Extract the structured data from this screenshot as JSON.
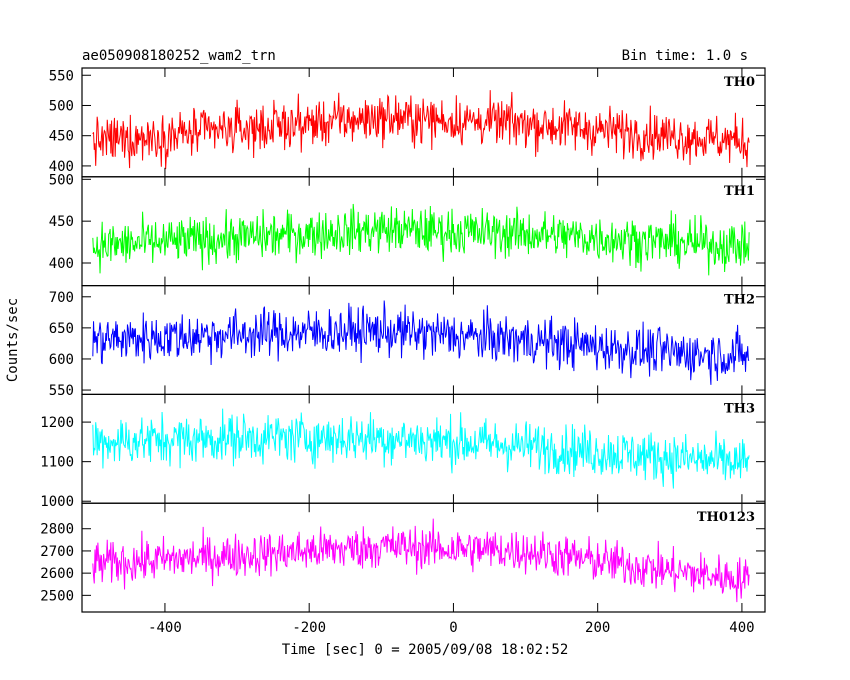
{
  "header": {
    "title": "ae050908180252_wam2_trn",
    "bin_time": "Bin time: 1.0 s"
  },
  "chart_data": {
    "type": "line",
    "title": "ae050908180252_wam2_trn",
    "xlabel": "Time [sec] 0 = 2005/09/08 18:02:52",
    "ylabel": "Counts/sec",
    "xlim": [
      -515,
      432
    ],
    "x_range": [
      -500,
      410
    ],
    "x_ticks": [
      -400,
      -200,
      0,
      200,
      400
    ],
    "grid": false,
    "legend": "none",
    "panels": [
      {
        "name": "TH0",
        "color": "#ff0000",
        "ylim": [
          382,
          562
        ],
        "y_ticks": [
          400,
          450,
          500,
          550
        ],
        "trend": [
          [
            -500,
            440
          ],
          [
            -300,
            460
          ],
          [
            -100,
            480
          ],
          [
            100,
            470
          ],
          [
            300,
            450
          ],
          [
            410,
            440
          ]
        ],
        "noise": 28
      },
      {
        "name": "TH1",
        "color": "#00ff00",
        "ylim": [
          373,
          503
        ],
        "y_ticks": [
          400,
          450,
          500
        ],
        "trend": [
          [
            -500,
            420
          ],
          [
            -300,
            430
          ],
          [
            -100,
            440
          ],
          [
            100,
            435
          ],
          [
            300,
            425
          ],
          [
            410,
            420
          ]
        ],
        "noise": 20
      },
      {
        "name": "TH2",
        "color": "#0000ff",
        "ylim": [
          543,
          718
        ],
        "y_ticks": [
          550,
          600,
          650,
          700
        ],
        "trend": [
          [
            -500,
            630
          ],
          [
            -300,
            640
          ],
          [
            -100,
            645
          ],
          [
            100,
            630
          ],
          [
            300,
            610
          ],
          [
            410,
            605
          ]
        ],
        "noise": 28
      },
      {
        "name": "TH3",
        "color": "#00ffff",
        "ylim": [
          995,
          1270
        ],
        "y_ticks": [
          1000,
          1100,
          1200
        ],
        "trend": [
          [
            -500,
            1150
          ],
          [
            -300,
            1160
          ],
          [
            -100,
            1160
          ],
          [
            100,
            1140
          ],
          [
            300,
            1110
          ],
          [
            410,
            1095
          ]
        ],
        "noise": 45
      },
      {
        "name": "TH0123",
        "color": "#ff00ff",
        "ylim": [
          2425,
          2915
        ],
        "y_ticks": [
          2500,
          2600,
          2700,
          2800
        ],
        "trend": [
          [
            -500,
            2640
          ],
          [
            -300,
            2680
          ],
          [
            -100,
            2720
          ],
          [
            100,
            2700
          ],
          [
            300,
            2610
          ],
          [
            410,
            2570
          ]
        ],
        "noise": 70
      }
    ]
  }
}
